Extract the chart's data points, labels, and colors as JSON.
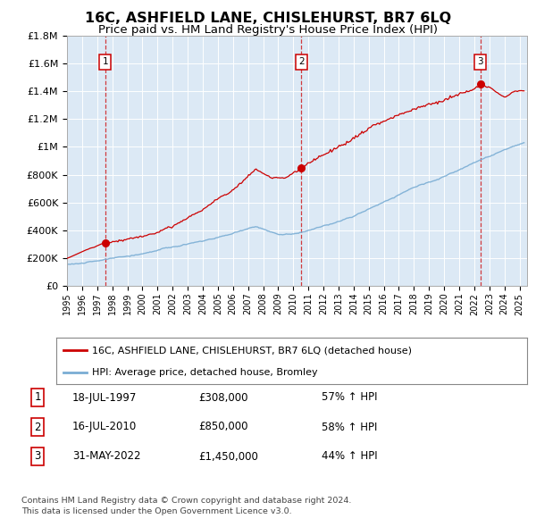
{
  "title": "16C, ASHFIELD LANE, CHISLEHURST, BR7 6LQ",
  "subtitle": "Price paid vs. HM Land Registry's House Price Index (HPI)",
  "title_fontsize": 11.5,
  "subtitle_fontsize": 9.5,
  "plot_bg_color": "#dce9f5",
  "red_color": "#cc0000",
  "blue_color": "#7aadd4",
  "ylim": [
    0,
    1800000
  ],
  "xlim_start": 1995.0,
  "xlim_end": 2025.5,
  "yticks": [
    0,
    200000,
    400000,
    600000,
    800000,
    1000000,
    1200000,
    1400000,
    1600000,
    1800000
  ],
  "ytick_labels": [
    "£0",
    "£200K",
    "£400K",
    "£600K",
    "£800K",
    "£1M",
    "£1.2M",
    "£1.4M",
    "£1.6M",
    "£1.8M"
  ],
  "xticks": [
    1995,
    1996,
    1997,
    1998,
    1999,
    2000,
    2001,
    2002,
    2003,
    2004,
    2005,
    2006,
    2007,
    2008,
    2009,
    2010,
    2011,
    2012,
    2013,
    2014,
    2015,
    2016,
    2017,
    2018,
    2019,
    2020,
    2021,
    2022,
    2023,
    2024,
    2025
  ],
  "sale_dates_decimal": [
    1997.54,
    2010.54,
    2022.41
  ],
  "sale_prices": [
    308000,
    850000,
    1450000
  ],
  "sale_labels": [
    "1",
    "2",
    "3"
  ],
  "sale_info": [
    {
      "label": "1",
      "date": "18-JUL-1997",
      "price": "£308,000",
      "hpi": "57% ↑ HPI"
    },
    {
      "label": "2",
      "date": "16-JUL-2010",
      "price": "£850,000",
      "hpi": "58% ↑ HPI"
    },
    {
      "label": "3",
      "date": "31-MAY-2022",
      "price": "£1,450,000",
      "hpi": "44% ↑ HPI"
    }
  ],
  "legend_line1": "16C, ASHFIELD LANE, CHISLEHURST, BR7 6LQ (detached house)",
  "legend_line2": "HPI: Average price, detached house, Bromley",
  "footer1": "Contains HM Land Registry data © Crown copyright and database right 2024.",
  "footer2": "This data is licensed under the Open Government Licence v3.0."
}
